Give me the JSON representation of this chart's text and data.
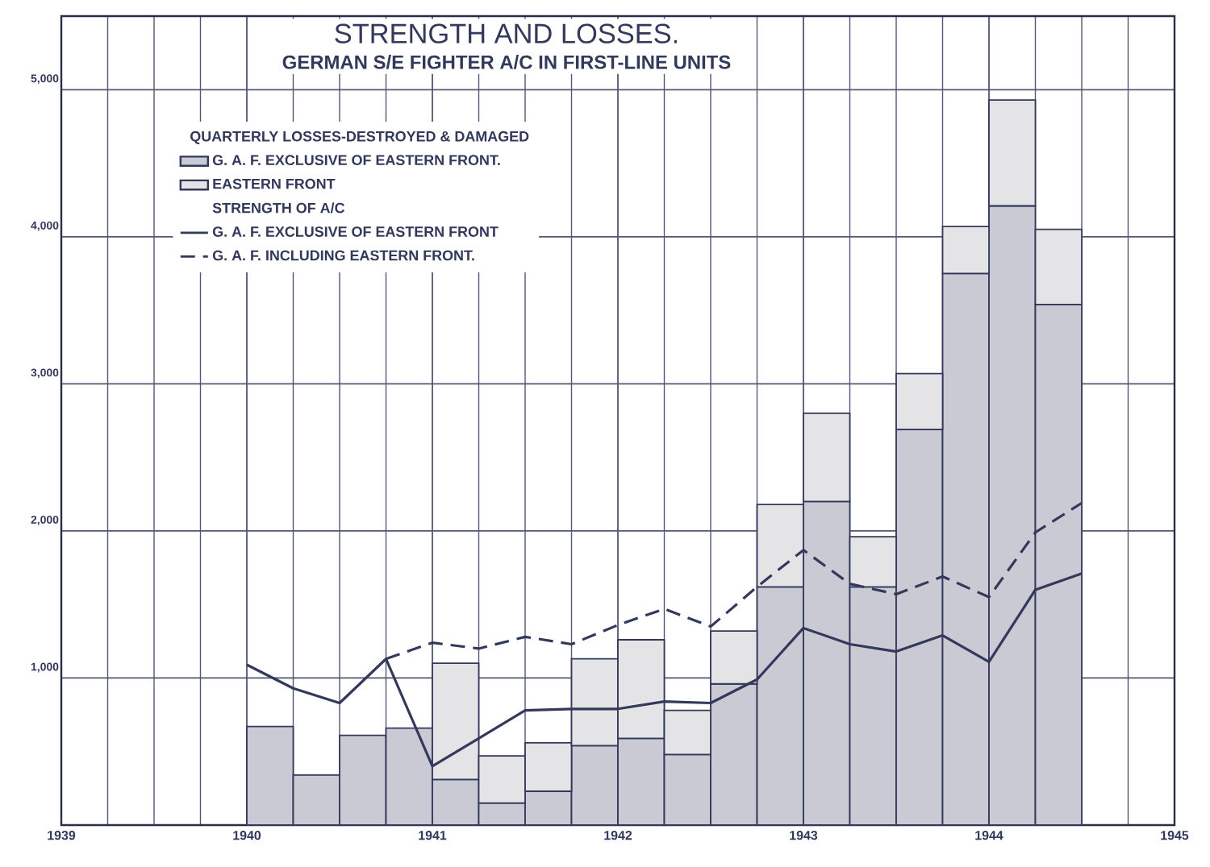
{
  "chart_data": {
    "type": "bar",
    "title": "STRENGTH AND LOSSES.",
    "subtitle": "GERMAN S/E FIGHTER A/C IN FIRST-LINE UNITS",
    "legend_title": "QUARTERLY LOSSES-DESTROYED & DAMAGED",
    "annotations": [
      "STRENGTH OF A/C"
    ],
    "stacked": true,
    "x": [
      1940.125,
      1940.375,
      1940.625,
      1940.875,
      1941.125,
      1941.375,
      1941.625,
      1941.875,
      1942.125,
      1942.375,
      1942.625,
      1942.875,
      1943.125,
      1943.375,
      1943.625,
      1943.875,
      1944.125,
      1944.375
    ],
    "series": [
      {
        "name": "G. A. F. EXCLUSIVE OF EASTERN FRONT.",
        "color": "#c9cad3",
        "values": [
          670,
          340,
          610,
          660,
          310,
          150,
          230,
          540,
          590,
          480,
          960,
          1620,
          2200,
          1620,
          2690,
          3750,
          4210,
          3540
        ]
      },
      {
        "name": "EASTERN FRONT",
        "color": "#e4e4e6",
        "values": [
          null,
          null,
          null,
          null,
          790,
          320,
          330,
          590,
          670,
          300,
          360,
          560,
          600,
          340,
          380,
          320,
          720,
          510
        ]
      },
      {
        "name": "G. A. F. EXCLUSIVE OF EASTERN FRONT",
        "type": "line",
        "line_style": "solid",
        "color": "#33395a",
        "x": [
          1940.0,
          1940.25,
          1940.5,
          1940.75,
          1941.0,
          1941.25,
          1941.5,
          1941.75,
          1942.0,
          1942.25,
          1942.5,
          1942.75,
          1943.0,
          1943.25,
          1943.5,
          1943.75,
          1944.0,
          1944.25,
          1944.5
        ],
        "values": [
          1090,
          930,
          830,
          1130,
          400,
          590,
          780,
          790,
          790,
          840,
          830,
          990,
          1340,
          1230,
          1180,
          1290,
          1110,
          1600,
          1710
        ]
      },
      {
        "name": "G. A. F. INCLUDING EASTERN FRONT.",
        "type": "line",
        "line_style": "dashed",
        "color": "#33395a",
        "x": [
          1940.75,
          1941.0,
          1941.25,
          1941.5,
          1941.75,
          1942.0,
          1942.25,
          1942.5,
          1942.75,
          1943.0,
          1943.25,
          1943.5,
          1943.75,
          1944.0,
          1944.25,
          1944.5
        ],
        "values": [
          1130,
          1240,
          1200,
          1280,
          1230,
          1360,
          1470,
          1350,
          1620,
          1870,
          1640,
          1570,
          1690,
          1550,
          1990,
          2190
        ]
      }
    ],
    "xlim": [
      1939,
      1945
    ],
    "xticks": [
      1939,
      1940,
      1941,
      1942,
      1943,
      1944,
      1945
    ],
    "ylim": [
      0,
      5500
    ],
    "yticks": [
      {
        "value": 1000,
        "label": "1,000"
      },
      {
        "value": 2000,
        "label": "2,000"
      },
      {
        "value": 3000,
        "label": "3,000"
      },
      {
        "value": 4000,
        "label": "4,000"
      },
      {
        "value": 5000,
        "label": "5,000"
      }
    ],
    "grid": true,
    "legend": "top left"
  }
}
